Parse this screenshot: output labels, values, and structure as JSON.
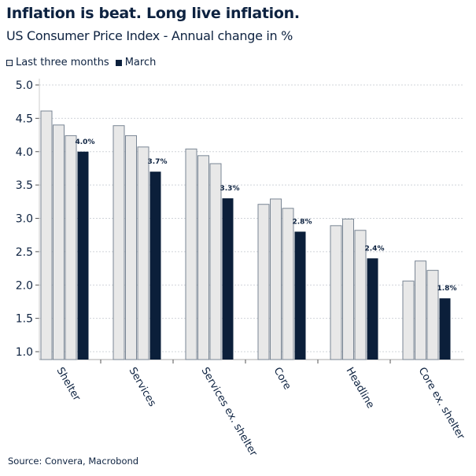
{
  "title": "Inflation is beat. Long live inflation.",
  "subtitle": "US Consumer Price Index - Annual change in %",
  "source": "Source: Convera, Macrobond",
  "colors": {
    "last_three_months": "#e8e8e8",
    "last_three_months_border": "#7a8694",
    "march": "#0b1f3a",
    "text": "#0d2240"
  },
  "chart_data": {
    "type": "bar",
    "title": "Inflation is beat. Long live inflation.",
    "subtitle": "US Consumer Price Index - Annual change in %",
    "legend_position": "top-left",
    "grid": "horizontal dashed",
    "ylim": [
      0.88,
      5.0
    ],
    "yticks": [
      "1.0",
      "1.5",
      "2.0",
      "2.5",
      "3.0",
      "3.5",
      "4.0",
      "4.5",
      "5.0"
    ],
    "categories": [
      "Shelter",
      "Services",
      "Services ex. shelter",
      "Core",
      "Headline",
      "Core ex. shelter"
    ],
    "series": [
      {
        "name": "Last three months",
        "values": [
          [
            4.61,
            4.4,
            4.24
          ],
          [
            4.39,
            4.24,
            4.07
          ],
          [
            4.04,
            3.94,
            3.82
          ],
          [
            3.21,
            3.29,
            3.15
          ],
          [
            2.89,
            2.99,
            2.82
          ],
          [
            2.06,
            2.36,
            2.22
          ]
        ]
      },
      {
        "name": "March",
        "values": [
          4.0,
          3.7,
          3.3,
          2.8,
          2.4,
          1.8
        ],
        "labels": [
          "4.0%",
          "3.7%",
          "3.3%",
          "2.8%",
          "2.4%",
          "1.8%"
        ]
      }
    ]
  }
}
